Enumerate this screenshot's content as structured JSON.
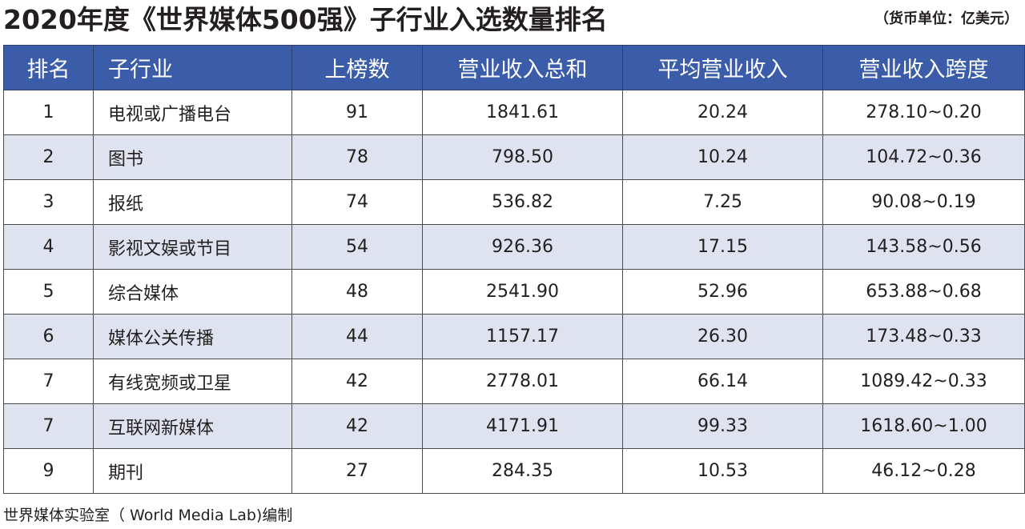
{
  "title": "2020年度《世界媒体500强》子行业入选数量排名",
  "unit_note": "（货币单位：亿美元）",
  "table": {
    "headers": [
      "排名",
      "子行业",
      "上榜数",
      "营业收入总和",
      "平均营业收入",
      "营业收入跨度"
    ],
    "rows": [
      [
        "1",
        "电视或广播电台",
        "91",
        "1841.61",
        "20.24",
        "278.10~0.20"
      ],
      [
        "2",
        "图书",
        "78",
        "798.50",
        "10.24",
        "104.72~0.36"
      ],
      [
        "3",
        "报纸",
        "74",
        "536.82",
        "7.25",
        "90.08~0.19"
      ],
      [
        "4",
        "影视文娱或节目",
        "54",
        "926.36",
        "17.15",
        "143.58~0.56"
      ],
      [
        "5",
        "综合媒体",
        "48",
        "2541.90",
        "52.96",
        "653.88~0.68"
      ],
      [
        "6",
        "媒体公关传播",
        "44",
        "1157.17",
        "26.30",
        "173.48~0.33"
      ],
      [
        "7",
        "有线宽频或卫星",
        "42",
        "2778.01",
        "66.14",
        "1089.42~0.33"
      ],
      [
        "7",
        "互联网新媒体",
        "42",
        "4171.91",
        "99.33",
        "1618.60~1.00"
      ],
      [
        "9",
        "期刊",
        "27",
        "284.35",
        "10.53",
        "46.12~0.28"
      ]
    ]
  },
  "footer": "世界媒体实验室（ World Media Lab)编制",
  "colors": {
    "header_bg": "#3b5ca8",
    "header_text": "#ffffff",
    "stripe_bg": "#dfe3ef",
    "border": "#4b4b4b"
  }
}
